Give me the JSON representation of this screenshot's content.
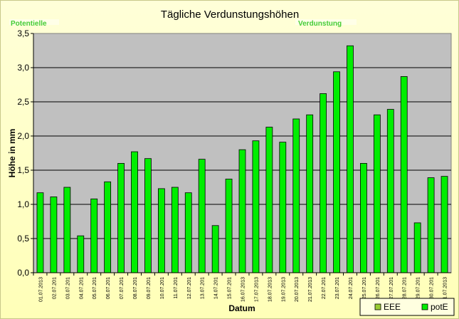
{
  "chart_data": {
    "type": "bar",
    "title": "Tägliche Verdunstungshöhen",
    "overlay_left": "Potentielle",
    "overlay_right": "Verdunstung",
    "xlabel": "Datum",
    "ylabel": "Höhe in mm",
    "ylim": [
      0,
      3.5
    ],
    "yticks": [
      "0,0",
      "0,5",
      "1,0",
      "1,5",
      "2,0",
      "2,5",
      "3,0",
      "3,5"
    ],
    "grid": true,
    "legend_placement": "bottom-right",
    "categories": [
      "01.07.2013",
      "02.07.201",
      "03.07.201",
      "04.07.201",
      "05.07.201",
      "06.07.201",
      "07.07.201",
      "08.07.201",
      "09.07.201",
      "10.07.201",
      "11.07.201",
      "12.07.201",
      "13.07.201",
      "14.07.201",
      "15.07.201",
      "16.07.2013",
      "17.07.2013",
      "18.07.2013",
      "19.07.2013",
      "20.07.2013",
      "21.07.2013",
      "22.07.201",
      "23.07.201",
      "24.07.201",
      "25.07.201",
      "26.07.201",
      "27.07.201",
      "28.07.201",
      "29.07.201",
      "30.07.201",
      "31.07.2013"
    ],
    "series": [
      {
        "name": "EEE",
        "color": "#99cc33",
        "values": [
          0,
          0,
          0,
          0,
          0,
          0,
          0,
          0,
          0,
          0,
          0,
          0,
          0,
          0,
          0,
          0,
          0,
          0,
          0,
          0,
          0,
          0,
          0,
          0,
          0,
          0,
          0,
          0,
          0,
          0,
          0
        ]
      },
      {
        "name": "potE",
        "color": "#00ee00",
        "values": [
          1.17,
          1.11,
          1.25,
          0.54,
          1.08,
          1.33,
          1.6,
          1.77,
          1.67,
          1.23,
          1.25,
          1.17,
          1.66,
          0.69,
          1.37,
          1.8,
          1.93,
          2.13,
          1.91,
          2.25,
          2.31,
          2.62,
          2.94,
          3.32,
          1.6,
          2.31,
          2.39,
          2.87,
          0.73,
          1.39,
          1.41
        ]
      }
    ]
  }
}
